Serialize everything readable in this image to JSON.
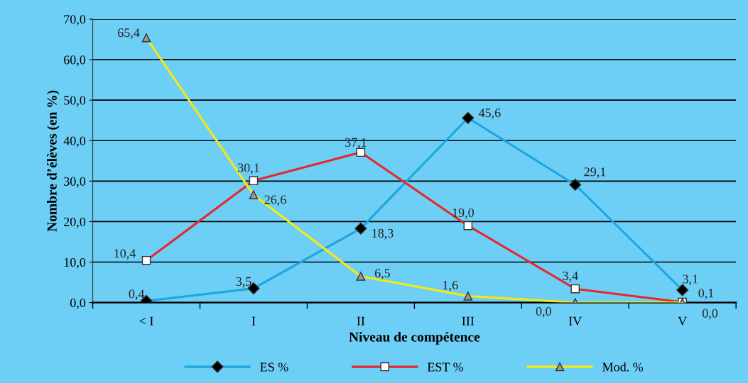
{
  "chart_data": {
    "type": "line",
    "xlabel": "Niveau de compétence",
    "ylabel": "Nombre d’élèves (en %)",
    "categories": [
      "< I",
      "I",
      "II",
      "III",
      "IV",
      "V"
    ],
    "series": [
      {
        "name": "ES %",
        "color": "#1ea5e0",
        "marker": "diamond",
        "values": [
          0.4,
          3.5,
          18.3,
          45.6,
          29.1,
          3.1
        ],
        "value_labels": [
          "0,4",
          "3,5",
          "18,3",
          "45,6",
          "29,1",
          "3,1"
        ]
      },
      {
        "name": "EST %",
        "color": "#e8262d",
        "marker": "square",
        "values": [
          10.4,
          30.1,
          37.1,
          19.0,
          3.4,
          0.1
        ],
        "value_labels": [
          "10,4",
          "30,1",
          "37,1",
          "19,0",
          "3,4",
          "0,1"
        ]
      },
      {
        "name": "Mod. %",
        "color": "#f7ea0c",
        "marker": "triangle",
        "values": [
          65.4,
          26.6,
          6.5,
          1.6,
          0.0,
          0.0
        ],
        "value_labels": [
          "65,4",
          "26,6",
          "6,5",
          "1,6",
          "0,0",
          "0,0"
        ]
      }
    ],
    "ylim": [
      0,
      70
    ],
    "yticks": [
      {
        "value": 0,
        "label": "0,0"
      },
      {
        "value": 10,
        "label": "10,0"
      },
      {
        "value": 20,
        "label": "20,0"
      },
      {
        "value": 30,
        "label": "30,0"
      },
      {
        "value": 40,
        "label": "40,0"
      },
      {
        "value": 50,
        "label": "50,0"
      },
      {
        "value": 60,
        "label": "60,0"
      },
      {
        "value": 70,
        "label": "70,0"
      }
    ],
    "grid": "y",
    "legend": "bottom",
    "line_style": "solid"
  }
}
